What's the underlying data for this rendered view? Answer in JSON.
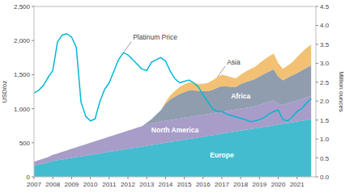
{
  "chart_data": {
    "type": "area",
    "stacked": true,
    "grid": false,
    "ylabel": "USD/oz",
    "y2label": "Million ounces",
    "xlim": [
      2007,
      2022
    ],
    "xticks": [
      2007,
      2008,
      2009,
      2010,
      2011,
      2012,
      2013,
      2014,
      2015,
      2016,
      2017,
      2018,
      2019,
      2020,
      2021
    ],
    "ylim": [
      0,
      2500
    ],
    "yticks": [
      0,
      500,
      {
        "value": 1000,
        "label": "1,000"
      },
      {
        "value": 1500,
        "label": "1,500"
      },
      {
        "value": 2000,
        "label": "2,000"
      },
      {
        "value": 2500,
        "label": "2,500"
      }
    ],
    "y2lim": [
      0,
      4.5
    ],
    "y2ticks": [
      {
        "value": 0,
        "label": "0.0"
      },
      0.5,
      {
        "value": 1,
        "label": "1.0"
      },
      1.5,
      {
        "value": 2,
        "label": "2.0"
      },
      2.5,
      {
        "value": 3,
        "label": "3.0"
      },
      3.5,
      {
        "value": 4,
        "label": "4.0"
      },
      4.5
    ],
    "x": [
      2007,
      2007.25,
      2007.5,
      2007.75,
      2008,
      2008.25,
      2008.5,
      2008.75,
      2009,
      2009.25,
      2009.5,
      2009.75,
      2010,
      2010.25,
      2010.5,
      2010.75,
      2011,
      2011.25,
      2011.5,
      2011.75,
      2012,
      2012.25,
      2012.5,
      2012.75,
      2013,
      2013.25,
      2013.5,
      2013.75,
      2014,
      2014.25,
      2014.5,
      2014.75,
      2015,
      2015.25,
      2015.5,
      2015.75,
      2016,
      2016.25,
      2016.5,
      2016.75,
      2017,
      2017.25,
      2017.5,
      2017.75,
      2018,
      2018.25,
      2018.5,
      2018.75,
      2019,
      2019.25,
      2019.5,
      2019.75,
      2020,
      2020.25,
      2020.5,
      2020.75,
      2021,
      2021.25,
      2021.5,
      2021.75
    ],
    "series": [
      {
        "name": "Europe",
        "type": "area",
        "axis": "y2",
        "color": "#2ab3c8",
        "values": [
          0.3,
          0.32,
          0.35,
          0.38,
          0.42,
          0.44,
          0.46,
          0.48,
          0.5,
          0.52,
          0.54,
          0.56,
          0.58,
          0.6,
          0.62,
          0.64,
          0.66,
          0.68,
          0.7,
          0.72,
          0.74,
          0.76,
          0.78,
          0.8,
          0.82,
          0.84,
          0.86,
          0.88,
          0.9,
          0.92,
          0.94,
          0.96,
          0.98,
          1.0,
          1.02,
          1.04,
          1.06,
          1.08,
          1.1,
          1.12,
          1.14,
          1.16,
          1.18,
          1.2,
          1.22,
          1.24,
          1.26,
          1.28,
          1.3,
          1.32,
          1.34,
          1.36,
          1.38,
          1.4,
          1.42,
          1.44,
          1.46,
          1.48,
          1.5,
          1.52
        ]
      },
      {
        "name": "North America",
        "type": "area",
        "axis": "y2",
        "color": "#9b8fc0",
        "values": [
          0.1,
          0.12,
          0.13,
          0.14,
          0.16,
          0.18,
          0.2,
          0.22,
          0.24,
          0.26,
          0.28,
          0.3,
          0.32,
          0.34,
          0.36,
          0.38,
          0.4,
          0.42,
          0.44,
          0.46,
          0.48,
          0.5,
          0.52,
          0.54,
          0.56,
          0.58,
          0.58,
          0.58,
          0.58,
          0.58,
          0.58,
          0.58,
          0.58,
          0.58,
          0.58,
          0.58,
          0.58,
          0.58,
          0.58,
          0.58,
          0.58,
          0.58,
          0.58,
          0.58,
          0.58,
          0.58,
          0.58,
          0.58,
          0.6,
          0.62,
          0.64,
          0.66,
          0.55,
          0.5,
          0.52,
          0.54,
          0.56,
          0.58,
          0.6,
          0.62
        ]
      },
      {
        "name": "Africa",
        "type": "area",
        "axis": "y2",
        "color": "#7f8fa4",
        "values": [
          0.0,
          0.0,
          0.0,
          0.0,
          0.0,
          0.0,
          0.0,
          0.0,
          0.0,
          0.0,
          0.0,
          0.0,
          0.0,
          0.0,
          0.0,
          0.0,
          0.0,
          0.0,
          0.0,
          0.0,
          0.0,
          0.0,
          0.0,
          0.0,
          0.05,
          0.1,
          0.2,
          0.3,
          0.45,
          0.55,
          0.6,
          0.65,
          0.68,
          0.7,
          0.68,
          0.65,
          0.62,
          0.6,
          0.62,
          0.65,
          0.68,
          0.65,
          0.62,
          0.6,
          0.65,
          0.68,
          0.7,
          0.72,
          0.75,
          0.78,
          0.8,
          0.82,
          0.72,
          0.65,
          0.68,
          0.7,
          0.72,
          0.75,
          0.78,
          0.8
        ]
      },
      {
        "name": "Asia",
        "type": "area",
        "axis": "y2",
        "color": "#f0b860",
        "values": [
          0.0,
          0.0,
          0.0,
          0.0,
          0.0,
          0.0,
          0.0,
          0.0,
          0.0,
          0.0,
          0.0,
          0.0,
          0.0,
          0.0,
          0.0,
          0.0,
          0.0,
          0.0,
          0.0,
          0.0,
          0.0,
          0.0,
          0.0,
          0.0,
          0.0,
          0.0,
          0.0,
          0.0,
          0.05,
          0.1,
          0.15,
          0.18,
          0.2,
          0.22,
          0.2,
          0.18,
          0.2,
          0.22,
          0.25,
          0.28,
          0.3,
          0.28,
          0.25,
          0.22,
          0.25,
          0.28,
          0.3,
          0.32,
          0.35,
          0.38,
          0.4,
          0.42,
          0.35,
          0.3,
          0.32,
          0.35,
          0.42,
          0.48,
          0.52,
          0.55
        ]
      },
      {
        "name": "Platinum Price",
        "type": "line",
        "axis": "y",
        "color": "#00b8d4",
        "values": [
          1230,
          1270,
          1340,
          1460,
          1560,
          1980,
          2080,
          2100,
          2050,
          1900,
          1100,
          890,
          820,
          850,
          1100,
          1280,
          1380,
          1550,
          1720,
          1820,
          1790,
          1720,
          1650,
          1580,
          1560,
          1680,
          1720,
          1750,
          1700,
          1550,
          1440,
          1380,
          1400,
          1420,
          1380,
          1320,
          1200,
          1100,
          1000,
          960,
          960,
          920,
          900,
          880,
          860,
          840,
          810,
          820,
          840,
          870,
          920,
          960,
          980,
          840,
          820,
          880,
          960,
          1000,
          1080,
          1150
        ]
      }
    ]
  }
}
